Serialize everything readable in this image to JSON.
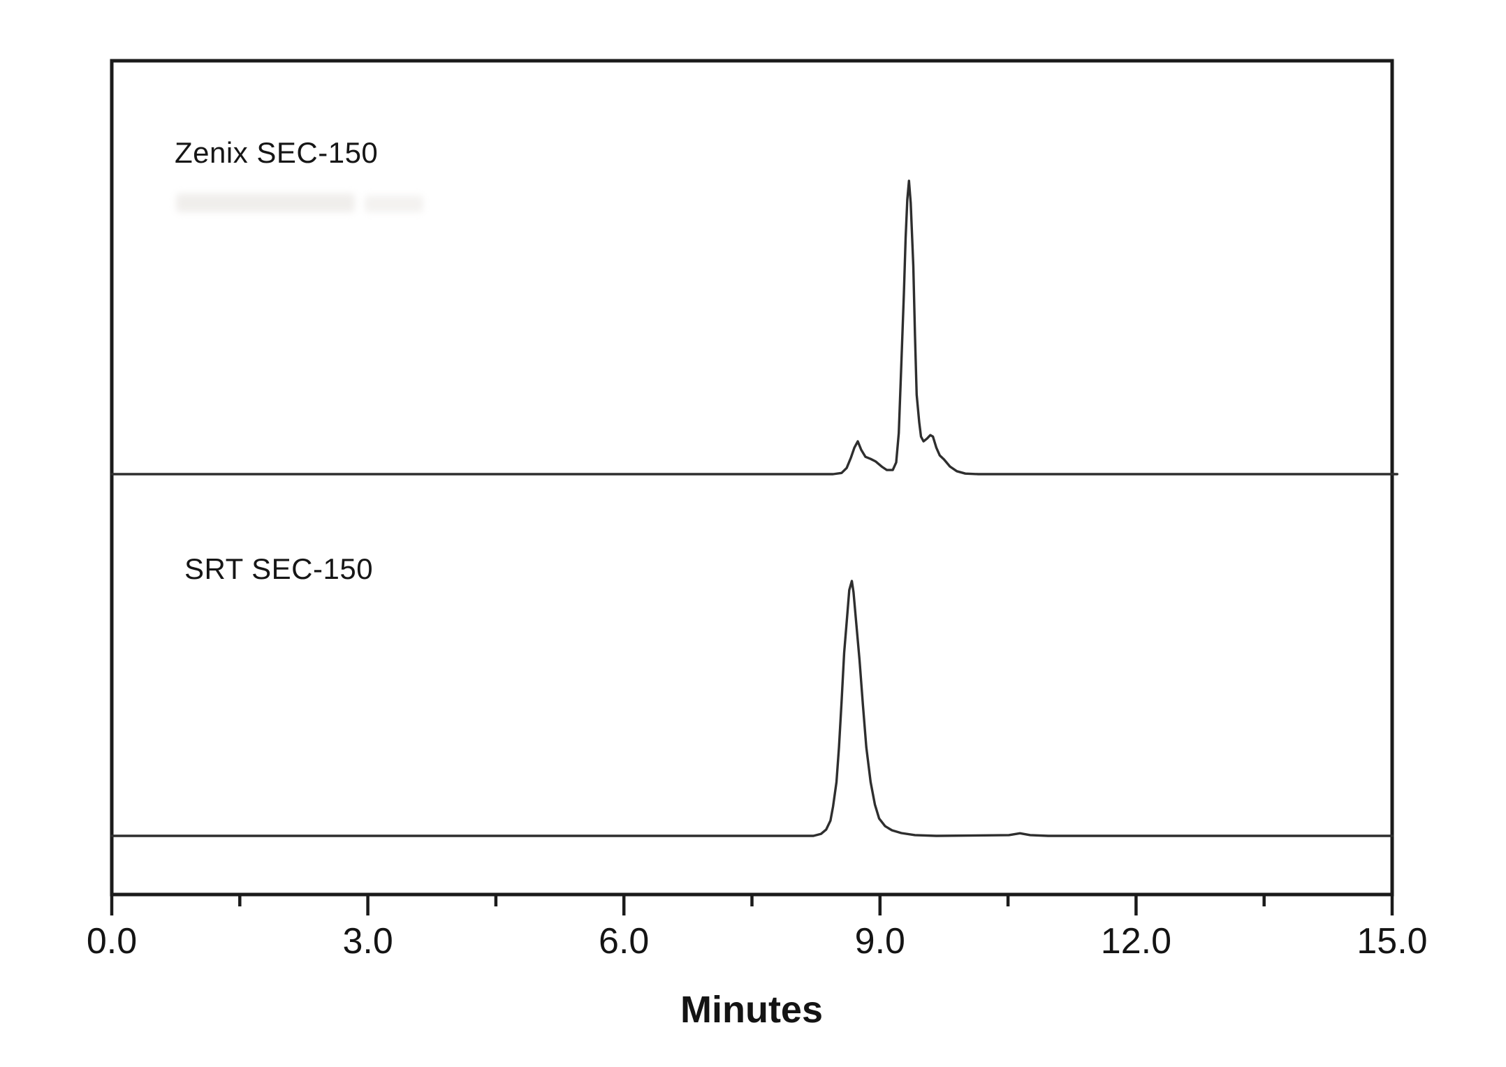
{
  "figure": {
    "xlabel": "Minutes",
    "panels": [
      {
        "label": "Zenix SEC-150"
      },
      {
        "label": "SRT SEC-150"
      }
    ]
  },
  "axis": {
    "min": 0.0,
    "max": 15.0,
    "major_ticks": [
      0.0,
      3.0,
      6.0,
      9.0,
      12.0,
      15.0
    ],
    "major_tick_labels": [
      "0.0",
      "3.0",
      "6.0",
      "9.0",
      "12.0",
      "15.0"
    ],
    "minor_ticks": [
      1.5,
      4.5,
      7.5,
      10.5,
      13.5
    ]
  },
  "colors": {
    "trace": "#2e2e2e",
    "frame": "#1b1b1b",
    "text": "#141414",
    "background": "#ffffff"
  },
  "chart_data": {
    "type": "line",
    "title": "",
    "xlabel": "Minutes",
    "ylabel": "",
    "xlim": [
      0.0,
      15.0
    ],
    "grid": false,
    "legend_position": "none",
    "y_units": "detector response (arbitrary, unlabeled axis; normalized 0-1 per trace)",
    "series": [
      {
        "name": "Zenix SEC-150",
        "apex_minutes": [
          8.74,
          9.34,
          9.59
        ],
        "points": [
          [
            0.0,
            0
          ],
          [
            8.45,
            0
          ],
          [
            8.55,
            0.004
          ],
          [
            8.61,
            0.021
          ],
          [
            8.66,
            0.057
          ],
          [
            8.7,
            0.09
          ],
          [
            8.74,
            0.112
          ],
          [
            8.78,
            0.083
          ],
          [
            8.83,
            0.059
          ],
          [
            8.89,
            0.052
          ],
          [
            8.95,
            0.043
          ],
          [
            9.02,
            0.026
          ],
          [
            9.08,
            0.014
          ],
          [
            9.15,
            0.014
          ],
          [
            9.19,
            0.04
          ],
          [
            9.22,
            0.14
          ],
          [
            9.25,
            0.378
          ],
          [
            9.28,
            0.615
          ],
          [
            9.3,
            0.805
          ],
          [
            9.32,
            0.936
          ],
          [
            9.34,
            1.0
          ],
          [
            9.36,
            0.924
          ],
          [
            9.39,
            0.71
          ],
          [
            9.41,
            0.473
          ],
          [
            9.43,
            0.271
          ],
          [
            9.46,
            0.176
          ],
          [
            9.48,
            0.128
          ],
          [
            9.51,
            0.112
          ],
          [
            9.55,
            0.121
          ],
          [
            9.59,
            0.133
          ],
          [
            9.62,
            0.128
          ],
          [
            9.66,
            0.09
          ],
          [
            9.7,
            0.064
          ],
          [
            9.75,
            0.05
          ],
          [
            9.82,
            0.026
          ],
          [
            9.9,
            0.01
          ],
          [
            10.0,
            0.002
          ],
          [
            10.15,
            0
          ],
          [
            15.06,
            0
          ]
        ]
      },
      {
        "name": "SRT SEC-150",
        "apex_minutes": [
          8.66
        ],
        "points": [
          [
            0.0,
            0
          ],
          [
            8.22,
            0
          ],
          [
            8.31,
            0.008
          ],
          [
            8.37,
            0.025
          ],
          [
            8.42,
            0.06
          ],
          [
            8.45,
            0.115
          ],
          [
            8.49,
            0.211
          ],
          [
            8.52,
            0.348
          ],
          [
            8.55,
            0.526
          ],
          [
            8.58,
            0.718
          ],
          [
            8.62,
            0.882
          ],
          [
            8.64,
            0.964
          ],
          [
            8.67,
            1.0
          ],
          [
            8.69,
            0.956
          ],
          [
            8.72,
            0.841
          ],
          [
            8.76,
            0.69
          ],
          [
            8.8,
            0.512
          ],
          [
            8.84,
            0.348
          ],
          [
            8.89,
            0.211
          ],
          [
            8.94,
            0.123
          ],
          [
            8.99,
            0.068
          ],
          [
            9.06,
            0.038
          ],
          [
            9.14,
            0.022
          ],
          [
            9.25,
            0.011
          ],
          [
            9.41,
            0.003
          ],
          [
            9.66,
            0
          ],
          [
            10.51,
            0.003
          ],
          [
            10.64,
            0.01
          ],
          [
            10.76,
            0.003
          ],
          [
            10.97,
            0
          ],
          [
            15.0,
            0
          ]
        ]
      }
    ]
  }
}
